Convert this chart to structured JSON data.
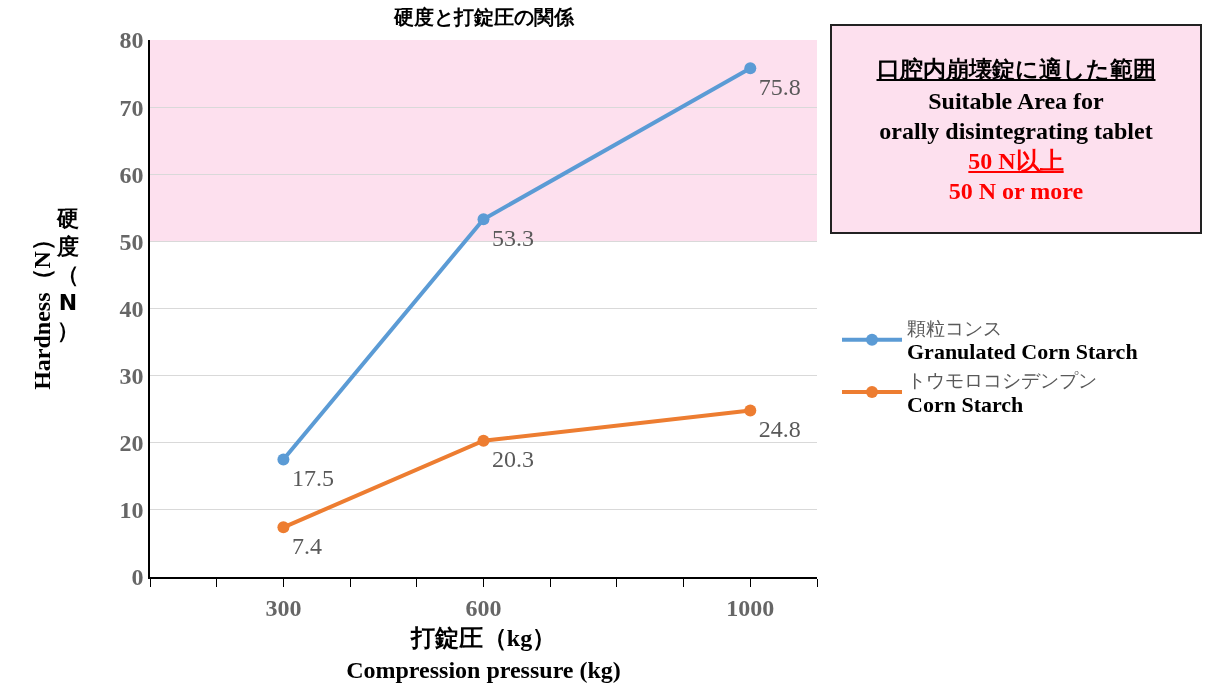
{
  "chart_data": {
    "type": "line",
    "title": "硬度と打錠圧の関係",
    "xlabel": "打錠圧（kg）\nCompression pressure (kg)",
    "ylabel": "Hardness（N）",
    "x": [
      300,
      600,
      1000
    ],
    "series": [
      {
        "name": "顆粒コンス\nGranulated Corn Starch",
        "color": "#5b9bd5",
        "values": [
          17.5,
          53.3,
          75.8
        ]
      },
      {
        "name": "トウモロコシデンプン\nCorn Starch",
        "color": "#ed7d31",
        "values": [
          7.4,
          20.3,
          24.8
        ]
      }
    ],
    "xlim": [
      100,
      1100
    ],
    "xticks": [
      {
        "value": 100,
        "label": null
      },
      {
        "value": 200,
        "label": null
      },
      300,
      {
        "value": 400,
        "label": null
      },
      {
        "value": 500,
        "label": null
      },
      600,
      {
        "value": 700,
        "label": null
      },
      {
        "value": 800,
        "label": null
      },
      {
        "value": 900,
        "label": null
      },
      1000,
      {
        "value": 1100,
        "label": null
      }
    ],
    "ylim": [
      0,
      80
    ],
    "yticks": [
      0,
      10,
      20,
      30,
      40,
      50,
      60,
      70,
      80
    ],
    "grid": "y",
    "marker": "circle",
    "line_style": "solid",
    "data_labels": true,
    "legend": "right",
    "bands": [
      {
        "axis": "y",
        "from": 50,
        "to": 80,
        "color": "#fde0ee",
        "label": "口腔内崩壊錠に適した範囲"
      }
    ],
    "annotations": [
      "硬度（N）",
      "Suitable Area for\norally disintegrating tablet",
      "50 N以上",
      "50 N or more"
    ]
  }
}
